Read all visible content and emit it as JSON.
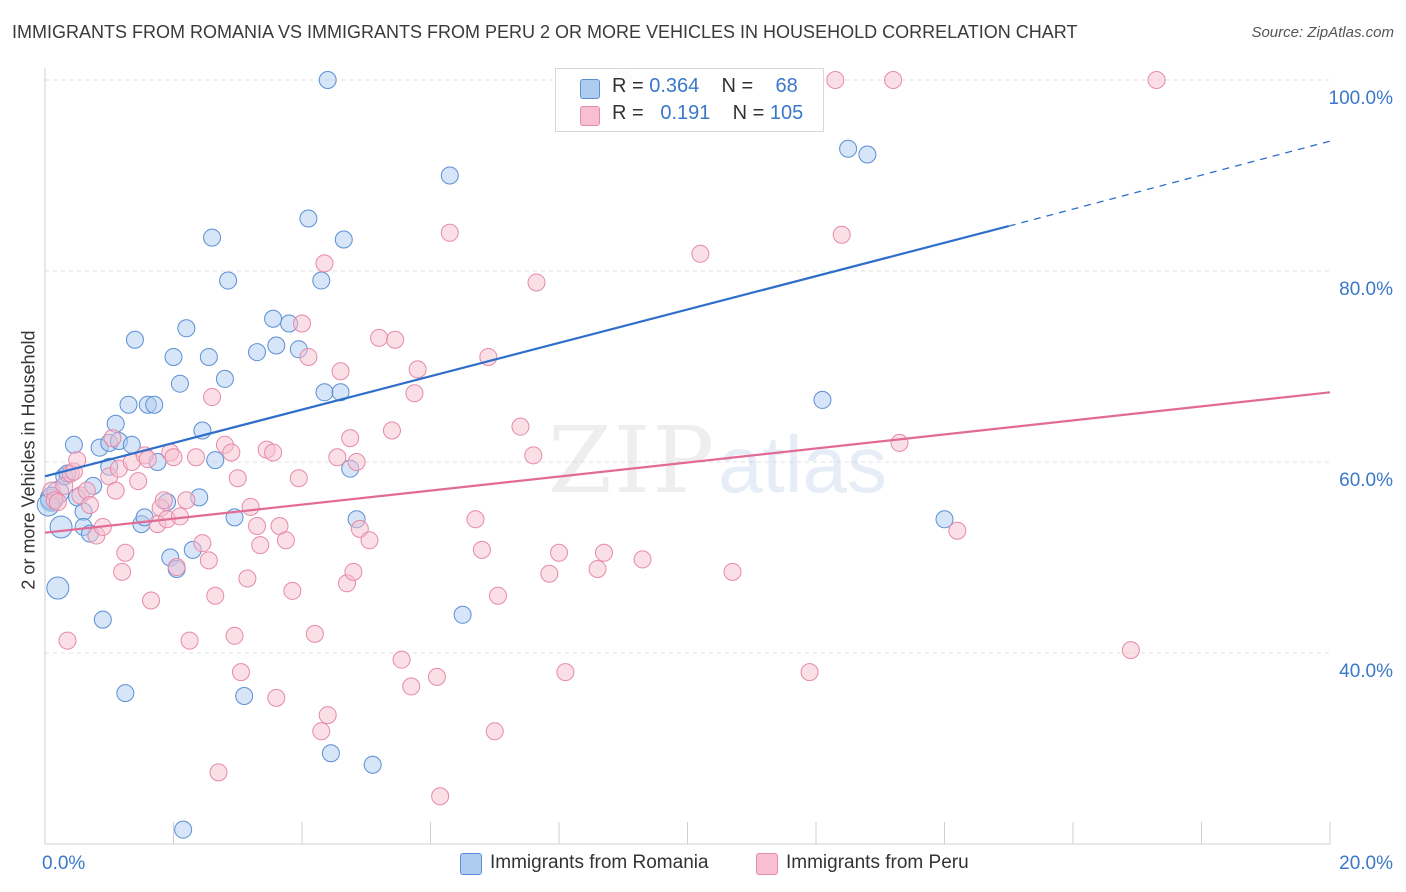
{
  "title": "IMMIGRANTS FROM ROMANIA VS IMMIGRANTS FROM PERU 2 OR MORE VEHICLES IN HOUSEHOLD CORRELATION CHART",
  "source": "Source: ZipAtlas.com",
  "watermark": "ZIPatlas",
  "legend": {
    "rows": [
      {
        "r_label": "R = ",
        "r_value": "0.364",
        "n_label": "N = ",
        "n_value": "68"
      },
      {
        "r_label": "R = ",
        "r_value": "0.191",
        "n_label": "N = ",
        "n_value": "105"
      }
    ]
  },
  "bottom_legend": [
    "Immigrants from Romania",
    "Immigrants from Peru"
  ],
  "colors": {
    "romania_fill": "#aecbf0",
    "romania_stroke": "#5b8fd4",
    "romania_line": "#2f6fc9",
    "peru_fill": "#f7bfd0",
    "peru_stroke": "#e68aa8",
    "peru_line": "#e26b95",
    "axis_label": "#3a78c9",
    "grid": "#e0e0e0"
  },
  "chart_data": {
    "type": "scatter",
    "title": "IMMIGRANTS FROM ROMANIA VS IMMIGRANTS FROM PERU 2 OR MORE VEHICLES IN HOUSEHOLD CORRELATION CHART",
    "xlabel": "",
    "ylabel": "2 or more Vehicles in Household",
    "xlim": [
      0,
      20
    ],
    "ylim": [
      20,
      100
    ],
    "x_tick_labels": [
      "0.0%",
      "20.0%"
    ],
    "y_ticks": [
      40,
      60,
      80,
      100
    ],
    "y_tick_labels": [
      "40.0%",
      "60.0%",
      "80.0%",
      "100.0%"
    ],
    "grid": true,
    "series": [
      {
        "name": "Immigrants from Romania",
        "r": 0.364,
        "n": 68,
        "trend": {
          "x0": 0,
          "y0": 58.5,
          "x1": 15,
          "y1": 84.7,
          "dashed_to_x": 20,
          "dashed_to_y": 93.6
        },
        "points": [
          [
            0.1,
            56.0
          ],
          [
            0.2,
            56.8
          ],
          [
            0.2,
            46.8
          ],
          [
            0.25,
            53.2
          ],
          [
            0.3,
            58.5
          ],
          [
            0.35,
            58.8
          ],
          [
            0.45,
            61.8
          ],
          [
            0.5,
            56.3
          ],
          [
            0.6,
            54.8
          ],
          [
            0.6,
            53.2
          ],
          [
            0.7,
            52.5
          ],
          [
            0.75,
            57.5
          ],
          [
            0.85,
            61.5
          ],
          [
            0.9,
            43.5
          ],
          [
            1.0,
            62.0
          ],
          [
            1.0,
            59.5
          ],
          [
            1.1,
            64.0
          ],
          [
            1.15,
            62.2
          ],
          [
            1.25,
            35.8
          ],
          [
            1.3,
            66.0
          ],
          [
            1.35,
            61.8
          ],
          [
            1.4,
            72.8
          ],
          [
            1.5,
            53.5
          ],
          [
            1.55,
            54.2
          ],
          [
            1.6,
            66.0
          ],
          [
            1.7,
            66.0
          ],
          [
            1.75,
            60.0
          ],
          [
            1.9,
            55.8
          ],
          [
            1.95,
            50.0
          ],
          [
            2.0,
            71.0
          ],
          [
            2.05,
            48.8
          ],
          [
            2.1,
            68.2
          ],
          [
            2.15,
            21.5
          ],
          [
            2.2,
            74.0
          ],
          [
            2.3,
            50.8
          ],
          [
            2.4,
            56.3
          ],
          [
            2.45,
            63.3
          ],
          [
            2.55,
            71.0
          ],
          [
            2.6,
            83.5
          ],
          [
            2.65,
            60.2
          ],
          [
            2.8,
            68.7
          ],
          [
            2.85,
            79.0
          ],
          [
            2.95,
            54.2
          ],
          [
            3.1,
            35.5
          ],
          [
            3.3,
            71.5
          ],
          [
            3.55,
            75.0
          ],
          [
            3.6,
            72.2
          ],
          [
            3.8,
            74.5
          ],
          [
            3.95,
            71.8
          ],
          [
            4.1,
            85.5
          ],
          [
            4.3,
            79.0
          ],
          [
            4.35,
            67.3
          ],
          [
            4.4,
            100.0
          ],
          [
            4.45,
            29.5
          ],
          [
            4.6,
            67.3
          ],
          [
            4.65,
            83.3
          ],
          [
            4.75,
            59.3
          ],
          [
            4.85,
            54.0
          ],
          [
            5.1,
            28.3
          ],
          [
            6.3,
            90.0
          ],
          [
            6.5,
            44.0
          ],
          [
            9.0,
            100.0
          ],
          [
            12.1,
            66.5
          ],
          [
            12.5,
            92.8
          ],
          [
            12.8,
            92.2
          ],
          [
            14.0,
            54.0
          ],
          [
            0.1,
            56.2
          ],
          [
            0.05,
            55.5
          ]
        ]
      },
      {
        "name": "Immigrants from Peru",
        "r": 0.191,
        "n": 105,
        "trend": {
          "x0": 0,
          "y0": 52.6,
          "x1": 20,
          "y1": 67.3
        },
        "points": [
          [
            0.1,
            57.0
          ],
          [
            0.15,
            56.0
          ],
          [
            0.2,
            55.8
          ],
          [
            0.3,
            57.5
          ],
          [
            0.35,
            41.3
          ],
          [
            0.4,
            58.8
          ],
          [
            0.45,
            59.0
          ],
          [
            0.5,
            60.2
          ],
          [
            0.55,
            56.5
          ],
          [
            0.65,
            57.0
          ],
          [
            0.7,
            55.5
          ],
          [
            0.8,
            52.3
          ],
          [
            0.9,
            53.2
          ],
          [
            1.0,
            58.5
          ],
          [
            1.05,
            62.5
          ],
          [
            1.1,
            57.0
          ],
          [
            1.15,
            59.3
          ],
          [
            1.2,
            48.5
          ],
          [
            1.25,
            50.5
          ],
          [
            1.35,
            60.0
          ],
          [
            1.45,
            58.0
          ],
          [
            1.55,
            60.7
          ],
          [
            1.6,
            60.3
          ],
          [
            1.65,
            45.5
          ],
          [
            1.75,
            53.5
          ],
          [
            1.8,
            55.2
          ],
          [
            1.85,
            56.0
          ],
          [
            1.9,
            54.0
          ],
          [
            1.95,
            61.0
          ],
          [
            2.0,
            60.5
          ],
          [
            2.05,
            49.0
          ],
          [
            2.1,
            54.3
          ],
          [
            2.2,
            56.0
          ],
          [
            2.25,
            41.3
          ],
          [
            2.35,
            60.5
          ],
          [
            2.45,
            51.5
          ],
          [
            2.55,
            49.7
          ],
          [
            2.6,
            66.8
          ],
          [
            2.65,
            46.0
          ],
          [
            2.7,
            27.5
          ],
          [
            2.8,
            61.8
          ],
          [
            2.9,
            61.0
          ],
          [
            2.95,
            41.8
          ],
          [
            3.0,
            58.3
          ],
          [
            3.05,
            38.0
          ],
          [
            3.15,
            47.8
          ],
          [
            3.2,
            55.3
          ],
          [
            3.3,
            53.3
          ],
          [
            3.35,
            51.3
          ],
          [
            3.45,
            61.3
          ],
          [
            3.55,
            61.0
          ],
          [
            3.6,
            35.3
          ],
          [
            3.65,
            53.3
          ],
          [
            3.75,
            51.8
          ],
          [
            3.85,
            46.5
          ],
          [
            3.95,
            58.3
          ],
          [
            4.0,
            74.5
          ],
          [
            4.1,
            71.0
          ],
          [
            4.2,
            42.0
          ],
          [
            4.3,
            31.8
          ],
          [
            4.35,
            80.8
          ],
          [
            4.4,
            33.5
          ],
          [
            4.55,
            60.5
          ],
          [
            4.6,
            69.5
          ],
          [
            4.7,
            47.3
          ],
          [
            4.75,
            62.5
          ],
          [
            4.8,
            48.5
          ],
          [
            4.85,
            60.0
          ],
          [
            4.9,
            53.0
          ],
          [
            5.05,
            51.8
          ],
          [
            5.2,
            73.0
          ],
          [
            5.4,
            63.3
          ],
          [
            5.45,
            72.8
          ],
          [
            5.55,
            39.3
          ],
          [
            5.7,
            36.5
          ],
          [
            5.75,
            67.2
          ],
          [
            5.8,
            69.7
          ],
          [
            6.1,
            37.5
          ],
          [
            6.15,
            25.0
          ],
          [
            6.3,
            84.0
          ],
          [
            6.7,
            54.0
          ],
          [
            6.8,
            50.8
          ],
          [
            6.9,
            71.0
          ],
          [
            7.0,
            31.8
          ],
          [
            7.05,
            46.0
          ],
          [
            7.4,
            63.7
          ],
          [
            7.6,
            60.7
          ],
          [
            7.65,
            78.8
          ],
          [
            7.85,
            48.3
          ],
          [
            8.0,
            50.5
          ],
          [
            8.1,
            38.0
          ],
          [
            8.6,
            48.8
          ],
          [
            8.7,
            50.5
          ],
          [
            9.0,
            100.0
          ],
          [
            9.3,
            49.8
          ],
          [
            10.2,
            81.8
          ],
          [
            10.7,
            48.5
          ],
          [
            11.9,
            38.0
          ],
          [
            12.3,
            100.0
          ],
          [
            12.4,
            83.8
          ],
          [
            13.2,
            100.0
          ],
          [
            13.3,
            62.0
          ],
          [
            14.2,
            52.8
          ],
          [
            16.9,
            40.3
          ],
          [
            17.3,
            100.0
          ]
        ]
      }
    ]
  }
}
